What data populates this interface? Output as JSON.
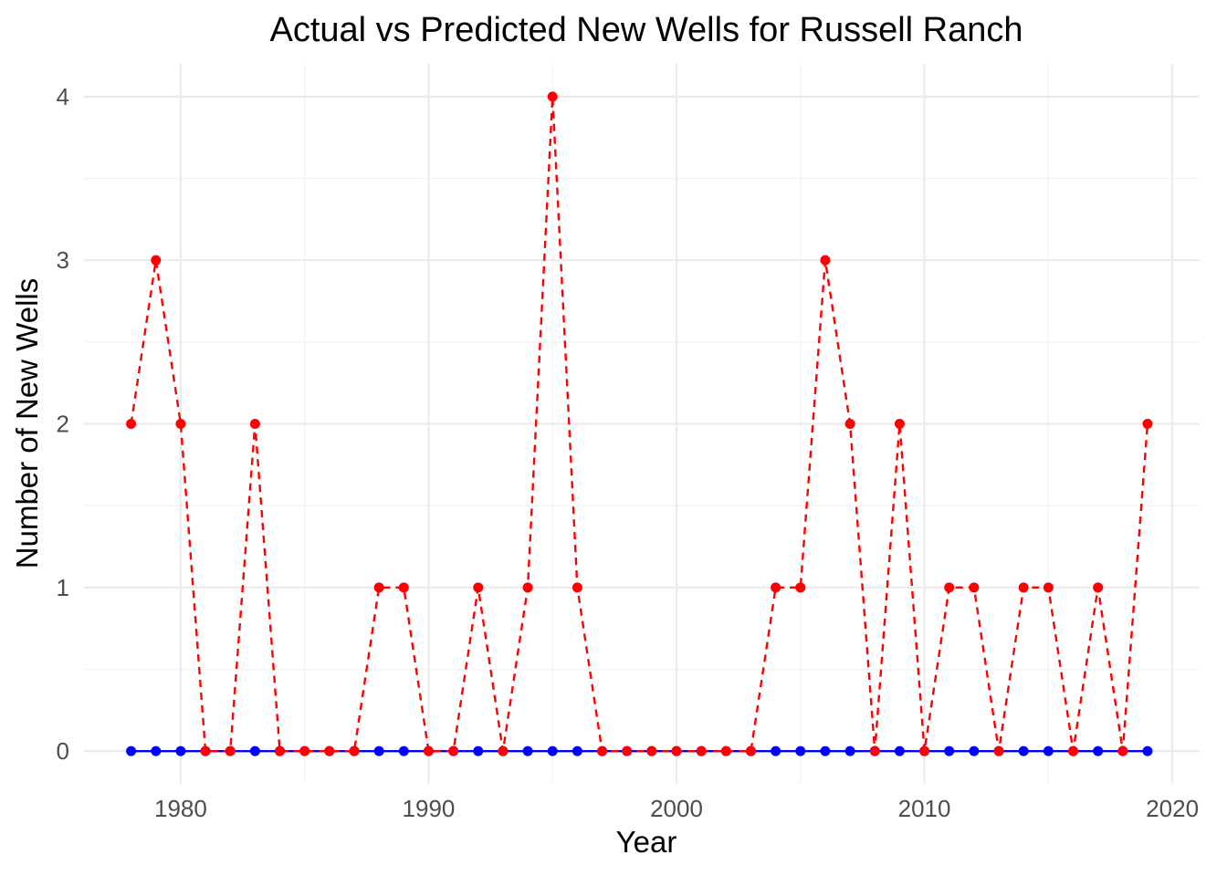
{
  "chart_data": {
    "type": "line",
    "title": "Actual vs Predicted New Wells for Russell Ranch",
    "xlabel": "Year",
    "ylabel": "Number of New Wells",
    "xlim": [
      1976.1,
      2021.1
    ],
    "ylim": [
      -0.2,
      4.2
    ],
    "x_ticks": [
      1980,
      1990,
      2000,
      2010,
      2020
    ],
    "y_ticks": [
      0,
      1,
      2,
      3,
      4
    ],
    "grid": true,
    "legend": "none",
    "x": [
      1978,
      1979,
      1980,
      1981,
      1982,
      1983,
      1984,
      1985,
      1986,
      1987,
      1988,
      1989,
      1990,
      1991,
      1992,
      1993,
      1994,
      1995,
      1996,
      1997,
      1998,
      1999,
      2000,
      2001,
      2002,
      2003,
      2004,
      2005,
      2006,
      2007,
      2008,
      2009,
      2010,
      2011,
      2012,
      2013,
      2014,
      2015,
      2016,
      2017,
      2018,
      2019
    ],
    "series": [
      {
        "color": "#0000ff",
        "line_style": "solid",
        "values": [
          0,
          0,
          0,
          0,
          0,
          0,
          0,
          0,
          0,
          0,
          0,
          0,
          0,
          0,
          0,
          0,
          0,
          0,
          0,
          0,
          0,
          0,
          0,
          0,
          0,
          0,
          0,
          0,
          0,
          0,
          0,
          0,
          0,
          0,
          0,
          0,
          0,
          0,
          0,
          0,
          0,
          0
        ]
      },
      {
        "color": "#ff0000",
        "line_style": "dashed",
        "values": [
          2,
          3,
          2,
          0,
          0,
          2,
          0,
          0,
          0,
          0,
          1,
          1,
          0,
          0,
          1,
          0,
          1,
          4,
          1,
          0,
          0,
          0,
          0,
          0,
          0,
          0,
          1,
          1,
          3,
          2,
          0,
          2,
          0,
          1,
          1,
          0,
          1,
          1,
          0,
          1,
          0,
          2
        ]
      }
    ]
  }
}
